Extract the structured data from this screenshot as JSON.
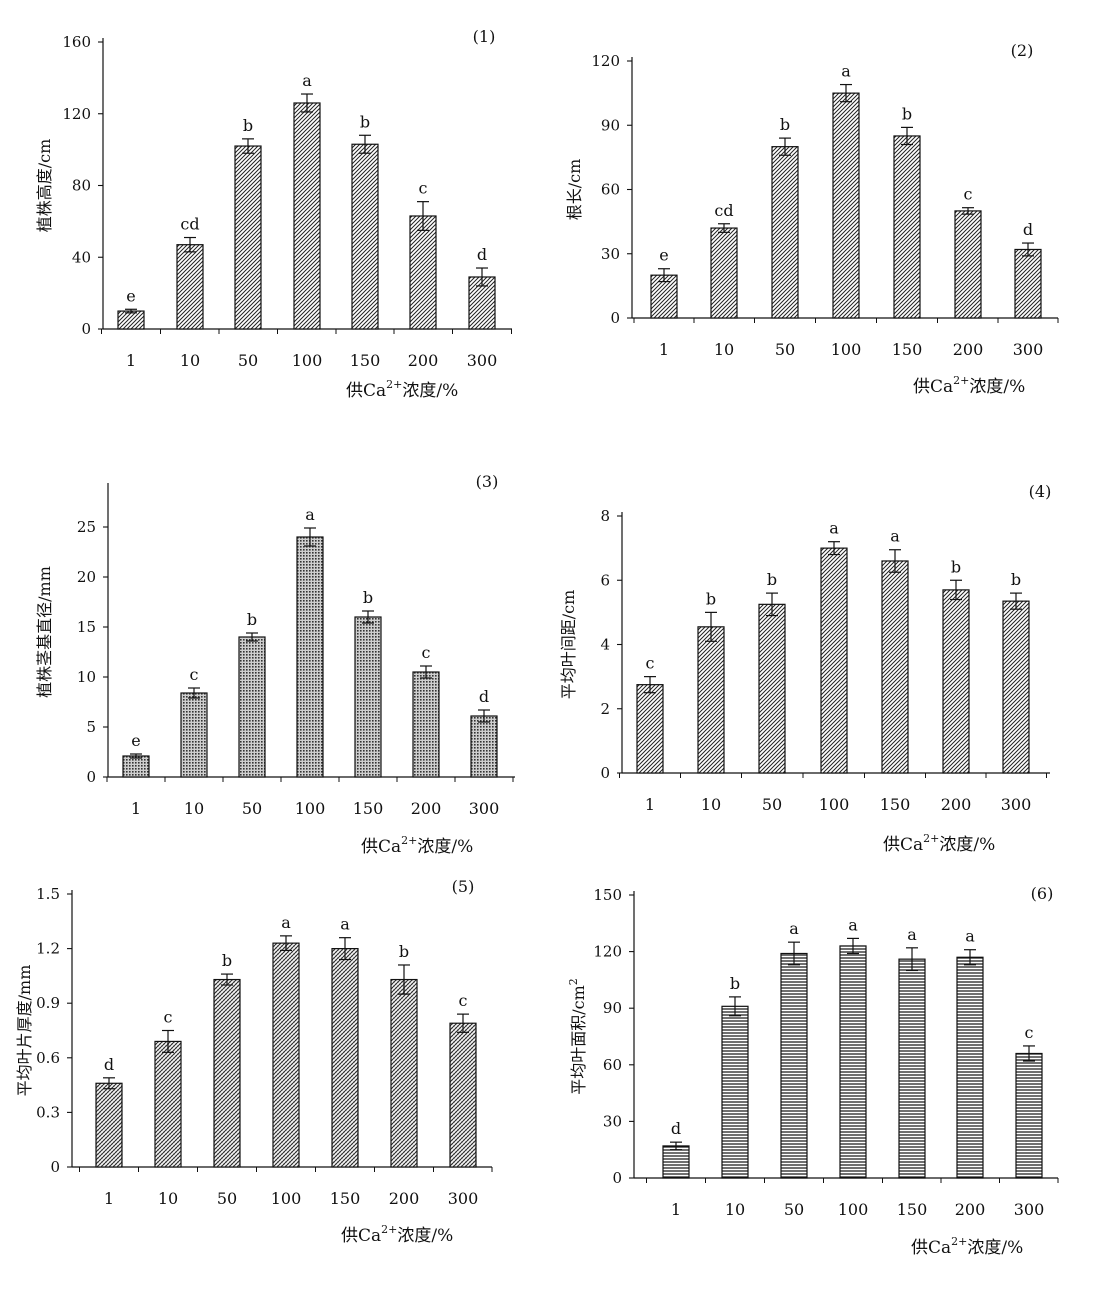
{
  "chart_data": [
    {
      "type": "bar",
      "panel": "(1)",
      "ylabel": "植株高度/cm",
      "xlabel": {
        "prefix": "供Ca",
        "sup": "2+",
        "suffix": "浓度/%"
      },
      "categories": [
        "1",
        "10",
        "50",
        "100",
        "150",
        "200",
        "300"
      ],
      "values": [
        10,
        47,
        102,
        126,
        103,
        63,
        29
      ],
      "errors": [
        1,
        4,
        4,
        5,
        5,
        8,
        5
      ],
      "letters": [
        "e",
        "cd",
        "b",
        "a",
        "b",
        "c",
        "d"
      ],
      "ylim": [
        0,
        160
      ],
      "yticks": [
        0,
        40,
        80,
        120,
        160
      ],
      "pattern": "diag"
    },
    {
      "type": "bar",
      "panel": "(2)",
      "ylabel": "根长/cm",
      "xlabel": {
        "prefix": "供Ca",
        "sup": "2+",
        "suffix": "浓度/%"
      },
      "categories": [
        "1",
        "10",
        "50",
        "100",
        "150",
        "200",
        "300"
      ],
      "values": [
        20,
        42,
        80,
        105,
        85,
        50,
        32
      ],
      "errors": [
        3,
        2,
        4,
        4,
        4,
        1.5,
        3
      ],
      "letters": [
        "e",
        "cd",
        "b",
        "a",
        "b",
        "c",
        "d"
      ],
      "ylim": [
        0,
        120
      ],
      "yticks": [
        0,
        30,
        60,
        90,
        120
      ],
      "pattern": "diag"
    },
    {
      "type": "bar",
      "panel": "(3)",
      "ylabel": "植株茎基直径/mm",
      "xlabel": {
        "prefix": "供Ca",
        "sup": "2+",
        "suffix": "浓度/%"
      },
      "categories": [
        "1",
        "10",
        "50",
        "100",
        "150",
        "200",
        "300"
      ],
      "values": [
        2.1,
        8.4,
        14,
        24,
        16,
        10.5,
        6.1
      ],
      "errors": [
        0.2,
        0.5,
        0.4,
        0.9,
        0.6,
        0.6,
        0.6
      ],
      "letters": [
        "e",
        "c",
        "b",
        "a",
        "b",
        "c",
        "d"
      ],
      "ylim": [
        0,
        29
      ],
      "yticks": [
        0,
        5,
        10,
        15,
        20,
        25
      ],
      "pattern": "dots"
    },
    {
      "type": "bar",
      "panel": "(4)",
      "ylabel": "平均叶间距/cm",
      "xlabel": {
        "prefix": "供Ca",
        "sup": "2+",
        "suffix": "浓度/%"
      },
      "categories": [
        "1",
        "10",
        "50",
        "100",
        "150",
        "200",
        "300"
      ],
      "values": [
        2.75,
        4.55,
        5.25,
        7.0,
        6.6,
        5.7,
        5.35
      ],
      "errors": [
        0.25,
        0.45,
        0.35,
        0.2,
        0.35,
        0.3,
        0.25
      ],
      "letters": [
        "c",
        "b",
        "b",
        "a",
        "a",
        "b",
        "b"
      ],
      "ylim": [
        0,
        8
      ],
      "yticks": [
        0,
        2,
        4,
        6,
        8
      ],
      "pattern": "diag"
    },
    {
      "type": "bar",
      "panel": "(5)",
      "ylabel": "平均叶片厚度/mm",
      "xlabel": {
        "prefix": "供Ca",
        "sup": "2+",
        "suffix": "浓度/%"
      },
      "categories": [
        "1",
        "10",
        "50",
        "100",
        "150",
        "200",
        "300"
      ],
      "values": [
        0.46,
        0.69,
        1.03,
        1.23,
        1.2,
        1.03,
        0.79
      ],
      "errors": [
        0.03,
        0.06,
        0.03,
        0.04,
        0.06,
        0.08,
        0.05
      ],
      "letters": [
        "d",
        "c",
        "b",
        "a",
        "a",
        "b",
        "c"
      ],
      "ylim": [
        0,
        1.5
      ],
      "yticks": [
        "0",
        "0.3",
        "0.6",
        "0.9",
        "1.2",
        "1.5"
      ],
      "pattern": "wave"
    },
    {
      "type": "bar",
      "panel": "(6)",
      "ylabel": "平均叶面积/cm",
      "ylabel_sup": "2",
      "xlabel": {
        "prefix": "供Ca",
        "sup": "2+",
        "suffix": "浓度/%"
      },
      "categories": [
        "1",
        "10",
        "50",
        "100",
        "150",
        "200",
        "300"
      ],
      "values": [
        17,
        91,
        119,
        123,
        116,
        117,
        66
      ],
      "errors": [
        2,
        5,
        6,
        4,
        6,
        4,
        4
      ],
      "letters": [
        "d",
        "b",
        "a",
        "a",
        "a",
        "a",
        "c"
      ],
      "ylim": [
        0,
        150
      ],
      "yticks": [
        0,
        30,
        60,
        90,
        120,
        150
      ],
      "pattern": "horiz"
    }
  ]
}
